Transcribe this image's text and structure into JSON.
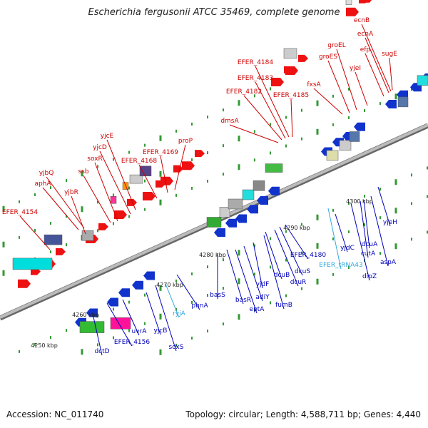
{
  "title": "Escherichia fergusonii ATCC 35469, complete genome",
  "footer": {
    "accession": "Accession: NC_011740",
    "summary": "Topology: circular; Length: 4,588,711 bp; Genes: 4,440"
  },
  "colors": {
    "forward_label": "#cc0000",
    "reverse_label": "#0000bb",
    "rna_label": "#33aadd",
    "backbone": "#999999",
    "tick": "#339933"
  },
  "ticks": [
    "4250 kbp",
    "4260 kbp",
    "4270 kbp",
    "4280 kbp",
    "4290 kbp",
    "4300 kbp"
  ],
  "genes_forward": [
    "EFER_4154",
    "aphA",
    "yjbR",
    "yjbQ",
    "ssb",
    "soxR",
    "yjcD",
    "yjcE",
    "EFER_4168",
    "EFER_4169",
    "proP",
    "dmsA",
    "EFER_4182",
    "EFER_4183",
    "EFER_4184",
    "EFER_4185",
    "fxsA",
    "groES",
    "groEL",
    "yjeI",
    "efp",
    "ecnA",
    "ecnB",
    "sugE"
  ],
  "genes_reverse": [
    "dctD",
    "EFER_4156",
    "uvrA",
    "yjcB",
    "soxS",
    "phnA",
    "basS",
    "basR",
    "eptA",
    "adiY",
    "yjdF",
    "fumB",
    "dcuB",
    "dcuR",
    "dcuS",
    "EFER_4180",
    "yjdC",
    "dipZ",
    "cutA",
    "dcuA",
    "aspA",
    "yjeH"
  ],
  "genes_rna": [
    "ryjA",
    "EFER_tRNA43"
  ]
}
